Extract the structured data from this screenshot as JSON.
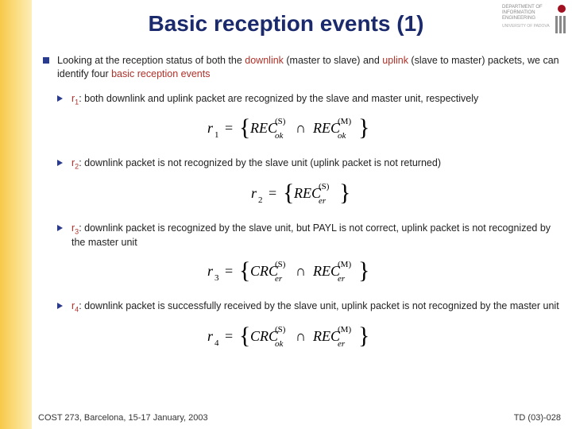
{
  "title": "Basic reception events (1)",
  "logo_lines": [
    "DEPARTMENT OF",
    "INFORMATION",
    "ENGINEERING"
  ],
  "logo_sub": "UNIVERSITY OF PADOVA",
  "lead": {
    "pre": "Looking at the reception status of both the ",
    "link1": "downlink",
    "mid1": " (master to slave) and ",
    "link2": "uplink",
    "mid2": " (slave to master) packets, we can identify four ",
    "accent": "basic reception events"
  },
  "items": [
    {
      "r_label": "r",
      "r_idx": "1",
      "text": ": both downlink and uplink packet are recognized by the slave and master unit, respectively",
      "formula": {
        "left": "r",
        "lidx": "1",
        "a_sup": "(S)",
        "a_sub": "ok",
        "op": "∩",
        "b_sup": "(M)",
        "b_sub": "ok",
        "a_kind": "REC",
        "b_kind": "REC",
        "a_state": "ok",
        "b_state": "ok"
      }
    },
    {
      "r_label": "r",
      "r_idx": "2",
      "text": ": downlink packet is not recognized by the slave unit (uplink packet is not returned)",
      "formula": {
        "left": "r",
        "lidx": "2",
        "a_sup": "(S)",
        "a_sub": "er",
        "op": "",
        "b_sup": "",
        "b_sub": "",
        "a_kind": "REC",
        "b_kind": "",
        "a_state": "er",
        "b_state": ""
      }
    },
    {
      "r_label": "r",
      "r_idx": "3",
      "text": ": downlink packet is recognized by the slave unit, but PAYL is not correct, uplink packet is not recognized by the master unit",
      "formula": {
        "left": "r",
        "lidx": "3",
        "a_sup": "(S)",
        "a_sub": "er",
        "op": "∩",
        "b_sup": "(M)",
        "b_sub": "er",
        "a_kind": "CRC",
        "b_kind": "REC",
        "a_state": "er",
        "b_state": "er"
      }
    },
    {
      "r_label": "r",
      "r_idx": "4",
      "text": ": downlink packet is successfully received by the slave unit, uplink packet is not recognized by the master unit",
      "formula": {
        "left": "r",
        "lidx": "4",
        "a_sup": "(S)",
        "a_sub": "ok",
        "op": "∩",
        "b_sup": "(M)",
        "b_sub": "er",
        "a_kind": "CRC",
        "b_kind": "REC",
        "a_state": "ok",
        "b_state": "er"
      }
    }
  ],
  "footer_left": "COST 273, Barcelona, 15-17 January, 2003",
  "footer_right": "TD (03)-028",
  "colors": {
    "title": "#1a2a6c",
    "accent": "#b03028",
    "bullet": "#2a3a8c",
    "band_from": "#f7c94a",
    "band_to": "#fdeeb8"
  }
}
